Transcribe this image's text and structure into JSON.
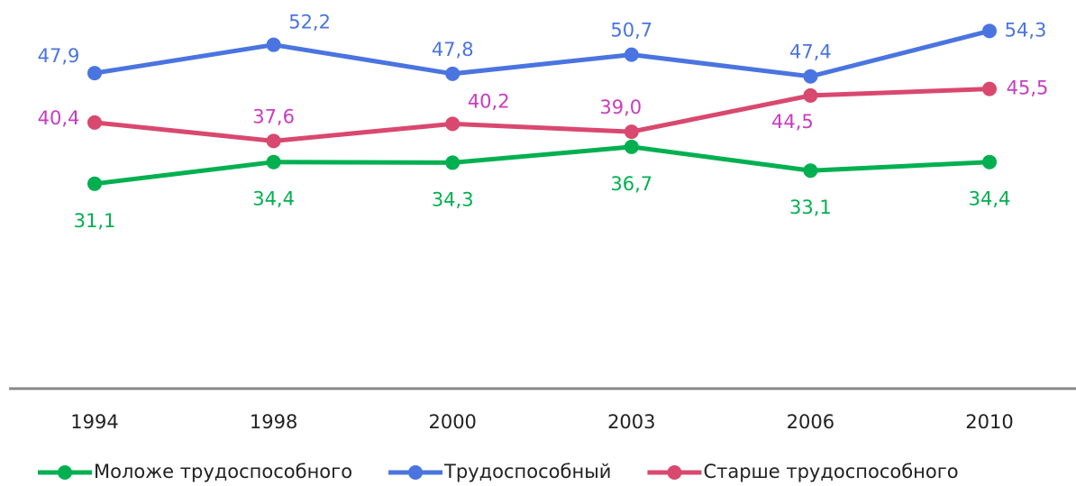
{
  "chart_data": {
    "type": "line",
    "categories": [
      "1994",
      "1998",
      "2000",
      "2003",
      "2006",
      "2010"
    ],
    "series": [
      {
        "name": "Моложе трудоспособного",
        "color": "#00b050",
        "label_color": "#00b050",
        "values": [
          31.1,
          34.4,
          34.3,
          36.7,
          33.1,
          34.4
        ],
        "value_labels": [
          "31,1",
          "34,4",
          "34,3",
          "36,7",
          "33,1",
          "34,4"
        ]
      },
      {
        "name": "Трудоспособный",
        "color": "#4a74e0",
        "label_color": "#4a74e0",
        "values": [
          47.9,
          52.2,
          47.8,
          50.7,
          47.4,
          54.3
        ],
        "value_labels": [
          "47,9",
          "52,2",
          "47,8",
          "50,7",
          "47,4",
          "54,3"
        ]
      },
      {
        "name": "Старше трудоспособного",
        "color": "#d9486f",
        "label_color": "#c83cc0",
        "values": [
          40.4,
          37.6,
          40.2,
          39.0,
          44.5,
          45.5
        ],
        "value_labels": [
          "40,4",
          "37,6",
          "40,2",
          "39,0",
          "44,5",
          "45,5"
        ]
      }
    ],
    "ylim": [
      0,
      59
    ],
    "legend": "bottom"
  }
}
